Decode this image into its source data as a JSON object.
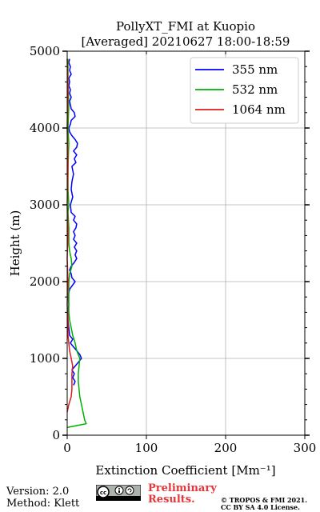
{
  "chart_data": {
    "type": "line",
    "title_line1": "PollyXT_FMI at Kuopio",
    "title_line2": "[Averaged] 20210627 18:00-18:59",
    "xlabel": "Extinction Coefficient [Mm⁻¹]",
    "ylabel": "Height (m)",
    "xlim": [
      0,
      300
    ],
    "ylim": [
      0,
      5000
    ],
    "x_ticks": [
      "0",
      "100",
      "200",
      "300"
    ],
    "y_ticks": [
      "0",
      "1000",
      "2000",
      "3000",
      "4000",
      "5000"
    ],
    "grid": true,
    "legend_position": "top-right",
    "series": [
      {
        "name": "355 nm",
        "color": "#0000ff",
        "points": [
          [
            8,
            650
          ],
          [
            10,
            700
          ],
          [
            7,
            750
          ],
          [
            9,
            800
          ],
          [
            6,
            850
          ],
          [
            10,
            900
          ],
          [
            14,
            950
          ],
          [
            18,
            1000
          ],
          [
            16,
            1050
          ],
          [
            12,
            1100
          ],
          [
            8,
            1150
          ],
          [
            4,
            1200
          ],
          [
            7,
            1250
          ],
          [
            3,
            1300
          ],
          [
            2,
            1400
          ],
          [
            1,
            1500
          ],
          [
            1,
            1600
          ],
          [
            2,
            1700
          ],
          [
            1,
            1800
          ],
          [
            3,
            1900
          ],
          [
            10,
            2000
          ],
          [
            6,
            2050
          ],
          [
            5,
            2100
          ],
          [
            3,
            2150
          ],
          [
            5,
            2200
          ],
          [
            9,
            2250
          ],
          [
            12,
            2300
          ],
          [
            10,
            2350
          ],
          [
            12,
            2400
          ],
          [
            9,
            2450
          ],
          [
            12,
            2500
          ],
          [
            8,
            2550
          ],
          [
            10,
            2600
          ],
          [
            8,
            2650
          ],
          [
            11,
            2700
          ],
          [
            12,
            2750
          ],
          [
            8,
            2800
          ],
          [
            10,
            2850
          ],
          [
            5,
            2900
          ],
          [
            4,
            3000
          ],
          [
            7,
            3100
          ],
          [
            5,
            3200
          ],
          [
            6,
            3300
          ],
          [
            8,
            3400
          ],
          [
            6,
            3500
          ],
          [
            11,
            3550
          ],
          [
            9,
            3600
          ],
          [
            12,
            3650
          ],
          [
            8,
            3700
          ],
          [
            12,
            3750
          ],
          [
            13,
            3800
          ],
          [
            10,
            3850
          ],
          [
            6,
            3900
          ],
          [
            3,
            3950
          ],
          [
            2,
            4000
          ],
          [
            4,
            4050
          ],
          [
            5,
            4100
          ],
          [
            10,
            4150
          ],
          [
            9,
            4200
          ],
          [
            5,
            4250
          ],
          [
            4,
            4300
          ],
          [
            3,
            4350
          ],
          [
            5,
            4400
          ],
          [
            3,
            4450
          ],
          [
            4,
            4500
          ],
          [
            2,
            4550
          ],
          [
            3,
            4600
          ],
          [
            2,
            4650
          ],
          [
            5,
            4700
          ],
          [
            3,
            4750
          ],
          [
            4,
            4800
          ],
          [
            2,
            4850
          ],
          [
            3,
            4900
          ]
        ]
      },
      {
        "name": "532 nm",
        "color": "#00b000",
        "points": [
          [
            0,
            100
          ],
          [
            24,
            150
          ],
          [
            22,
            200
          ],
          [
            20,
            300
          ],
          [
            18,
            400
          ],
          [
            16,
            500
          ],
          [
            15,
            600
          ],
          [
            14,
            700
          ],
          [
            14,
            800
          ],
          [
            15,
            900
          ],
          [
            16,
            1000
          ],
          [
            12,
            1100
          ],
          [
            10,
            1200
          ],
          [
            7,
            1300
          ],
          [
            5,
            1400
          ],
          [
            3,
            1500
          ],
          [
            2,
            1600
          ],
          [
            2,
            1700
          ],
          [
            2,
            1800
          ],
          [
            2,
            1900
          ],
          [
            2,
            2000
          ],
          [
            3,
            2100
          ],
          [
            6,
            2200
          ],
          [
            5,
            2300
          ],
          [
            3,
            2400
          ],
          [
            2,
            2500
          ],
          [
            2,
            2700
          ],
          [
            1,
            2900
          ],
          [
            2,
            3000
          ],
          [
            1,
            3200
          ],
          [
            1,
            3500
          ],
          [
            2,
            3800
          ],
          [
            1,
            4000
          ],
          [
            2,
            4300
          ],
          [
            1,
            4600
          ],
          [
            1,
            4900
          ]
        ]
      },
      {
        "name": "1064 nm",
        "color": "#dd1c1c",
        "points": [
          [
            0,
            300
          ],
          [
            2,
            400
          ],
          [
            5,
            500
          ],
          [
            6,
            600
          ],
          [
            6,
            700
          ],
          [
            6,
            800
          ],
          [
            7,
            900
          ],
          [
            5,
            1000
          ],
          [
            3,
            1100
          ],
          [
            2,
            1200
          ],
          [
            1,
            1300
          ],
          [
            1,
            1500
          ],
          [
            0,
            1700
          ],
          [
            1,
            2000
          ],
          [
            0,
            2300
          ],
          [
            1,
            2600
          ],
          [
            0,
            3000
          ],
          [
            1,
            3500
          ],
          [
            0,
            4000
          ],
          [
            1,
            4500
          ],
          [
            0,
            4900
          ]
        ]
      }
    ]
  },
  "footer": {
    "version": "Version: 2.0",
    "method": "Method: Klett",
    "preliminary_line1": "Preliminary",
    "preliminary_line2": "Results.",
    "copyright_line1": "© TROPOS & FMI 2021.",
    "copyright_line2": "CC BY SA 4.0 License.",
    "license_badge": "cc-by-sa-badge",
    "license_badge_text": "cc"
  }
}
